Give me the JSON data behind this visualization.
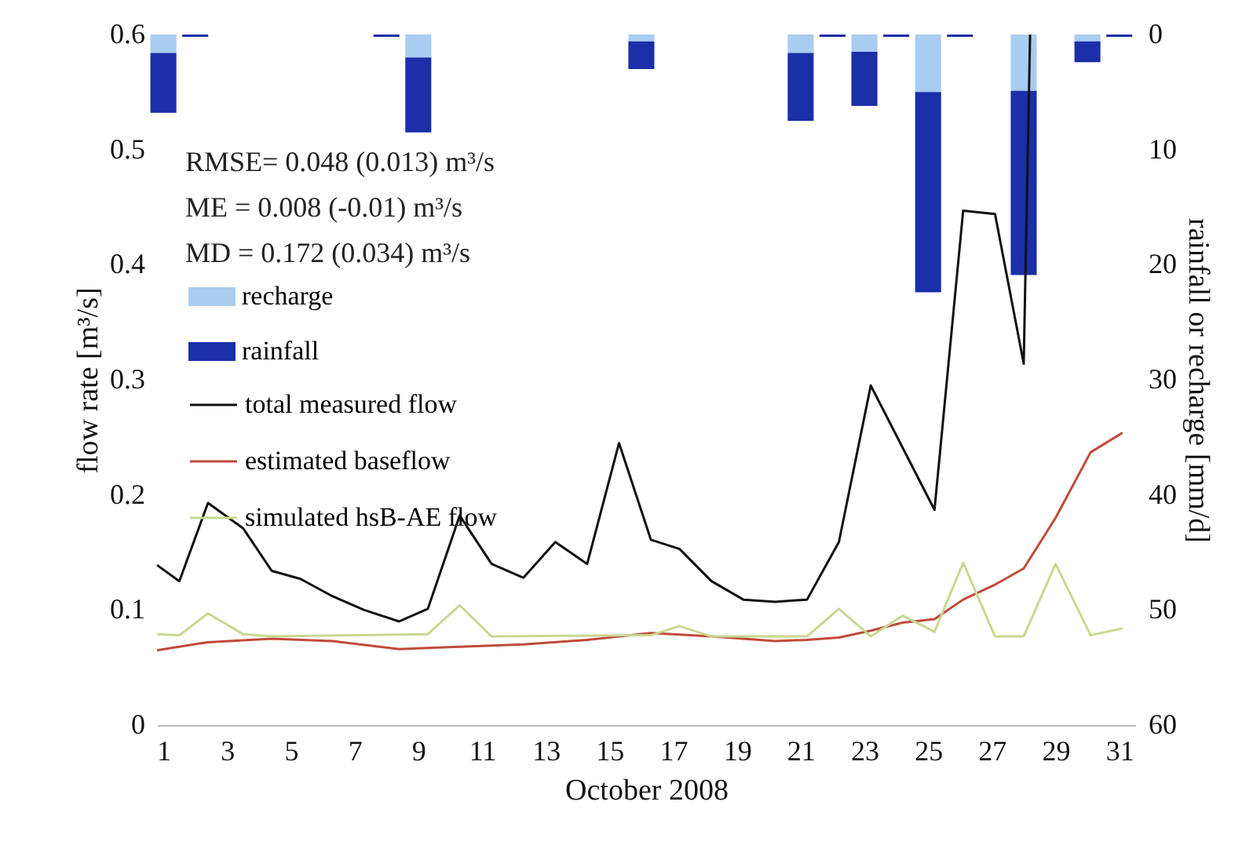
{
  "chart_data": {
    "type": "line",
    "xlabel": "October 2008",
    "ylabel": "flow rate [m³/s]",
    "y2label": "rainfall or recharge [mm/d]",
    "xlim": [
      0.8,
      31.5
    ],
    "xticks": [
      1,
      3,
      5,
      7,
      9,
      11,
      13,
      15,
      17,
      19,
      21,
      23,
      25,
      27,
      29,
      31
    ],
    "ylim": [
      0,
      0.6
    ],
    "yticks": [
      0,
      0.1,
      0.2,
      0.3,
      0.4,
      0.5,
      0.6
    ],
    "y2lim": [
      60,
      0
    ],
    "y2ticks": [
      0,
      10,
      20,
      30,
      40,
      50,
      60
    ],
    "stacked": true,
    "grid": false,
    "legend": "left",
    "annotations": [
      "RMSE= 0.048 (0.013) m³/s",
      "ME = 0.008 (-0.01) m³/s",
      "MD = 0.172 (0.034) m³/s"
    ],
    "series": [
      {
        "name": "recharge",
        "type": "bar",
        "axis": "y2",
        "color": "#a8cdf0",
        "x": [
          1,
          2,
          8,
          9,
          16,
          21,
          22,
          23,
          24,
          25,
          26,
          28,
          30,
          31
        ],
        "values": [
          1.6,
          0,
          0,
          2.0,
          0.6,
          1.6,
          0,
          1.5,
          0,
          5.0,
          0,
          4.9,
          0.6,
          0
        ]
      },
      {
        "name": "rainfall",
        "type": "bar",
        "axis": "y2",
        "color": "#1a2fa8",
        "x": [
          1,
          2,
          8,
          9,
          16,
          21,
          22,
          23,
          24,
          25,
          26,
          28,
          30,
          31
        ],
        "values": [
          5.2,
          0.2,
          0.2,
          6.5,
          2.4,
          5.9,
          0.2,
          4.7,
          0.2,
          17.4,
          0.2,
          16.0,
          1.8,
          0.2
        ]
      },
      {
        "name": "total measured flow",
        "type": "line",
        "color": "#111111",
        "x": [
          0.8,
          1.5,
          2.4,
          3.5,
          4.4,
          5.3,
          6.3,
          7.3,
          8.4,
          9.3,
          10.3,
          11.3,
          12.3,
          13.3,
          14.3,
          15.3,
          16.3,
          17.2,
          18.2,
          19.2,
          20.2,
          21.2,
          22.2,
          23.2,
          25.2,
          26.1,
          27.1,
          28.0,
          28.2
        ],
        "values": [
          0.139,
          0.125,
          0.193,
          0.171,
          0.134,
          0.127,
          0.112,
          0.1,
          0.09,
          0.101,
          0.182,
          0.14,
          0.128,
          0.159,
          0.14,
          0.245,
          0.161,
          0.153,
          0.125,
          0.109,
          0.107,
          0.109,
          0.159,
          0.295,
          0.187,
          0.447,
          0.444,
          0.314,
          0.6
        ]
      },
      {
        "name": "estimated baseflow",
        "type": "line",
        "color": "#c04a3a",
        "x": [
          0.8,
          2.4,
          4.4,
          6.3,
          8.4,
          9.3,
          12.3,
          14.3,
          16.3,
          18.2,
          20.2,
          21.2,
          22.2,
          23.2,
          24.2,
          25.2,
          26.1,
          27.1,
          28.0,
          29.0,
          30.1,
          31.1
        ],
        "values": [
          0.065,
          0.072,
          0.075,
          0.073,
          0.066,
          0.067,
          0.07,
          0.074,
          0.08,
          0.077,
          0.073,
          0.074,
          0.076,
          0.082,
          0.089,
          0.092,
          0.109,
          0.122,
          0.136,
          0.18,
          0.237,
          0.254
        ]
      },
      {
        "name": "simulated hsB-AE flow",
        "type": "line",
        "color": "#c8d890",
        "x": [
          0.8,
          1.5,
          2.4,
          3.5,
          4.4,
          9.3,
          10.3,
          11.3,
          16.3,
          17.2,
          18.2,
          21.2,
          22.2,
          23.2,
          24.2,
          25.2,
          26.1,
          27.1,
          28.0,
          29.0,
          30.1,
          31.1
        ],
        "values": [
          0.079,
          0.078,
          0.097,
          0.079,
          0.077,
          0.079,
          0.104,
          0.077,
          0.078,
          0.086,
          0.077,
          0.077,
          0.101,
          0.077,
          0.095,
          0.081,
          0.141,
          0.077,
          0.077,
          0.14,
          0.078,
          0.084
        ]
      }
    ]
  }
}
